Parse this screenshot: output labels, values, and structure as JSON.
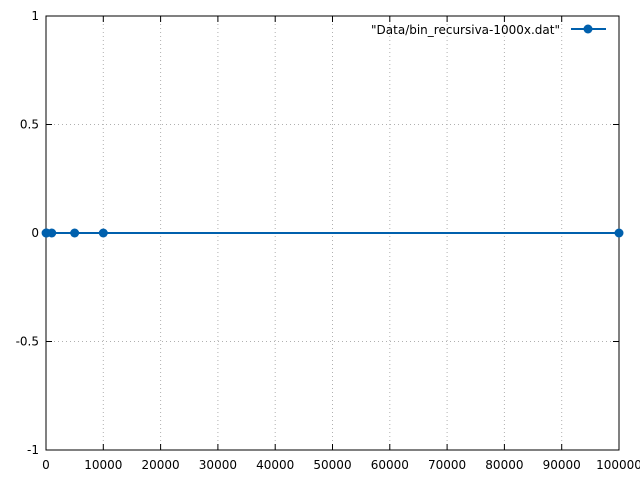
{
  "chart_data": {
    "type": "line",
    "title": "",
    "xlabel": "",
    "ylabel": "",
    "xlim": [
      0,
      100000
    ],
    "ylim": [
      -1,
      1
    ],
    "xticks": [
      0,
      10000,
      20000,
      30000,
      40000,
      50000,
      60000,
      70000,
      80000,
      90000,
      100000
    ],
    "xtick_labels": [
      "0",
      "10000",
      "20000",
      "30000",
      "40000",
      "50000",
      "60000",
      "70000",
      "80000",
      "90000",
      "100000"
    ],
    "yticks": [
      -1,
      -0.5,
      0,
      0.5,
      1
    ],
    "ytick_labels": [
      "-1",
      "-0.5",
      "0",
      "0.5",
      "1"
    ],
    "grid": true,
    "legend_position": "top-right",
    "series": [
      {
        "name": "\"Data/bin_recursiva-1000x.dat\"",
        "color": "#0060ad",
        "marker": "circle",
        "x": [
          10,
          100,
          1000,
          5000,
          10000,
          100000
        ],
        "y": [
          0,
          0,
          0,
          0,
          0,
          0
        ]
      }
    ]
  }
}
